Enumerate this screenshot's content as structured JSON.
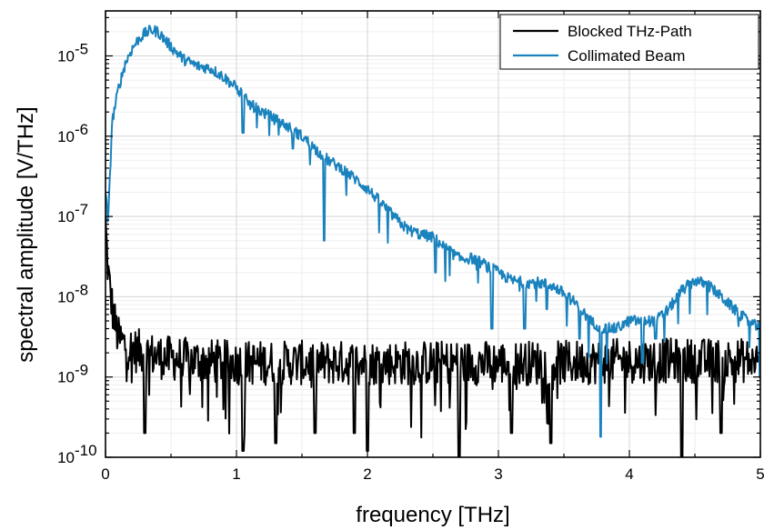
{
  "chart_data": {
    "type": "line",
    "xlabel": "frequency [THz]",
    "ylabel": "spectral amplitude [V/THz]",
    "xlim": [
      0,
      5
    ],
    "ylim": [
      1e-10,
      5e-05
    ],
    "yscale": "log",
    "grid": true,
    "legend_position": "top-right",
    "x_ticks": [
      "0",
      "1",
      "2",
      "3",
      "4",
      "5"
    ],
    "y_ticks": [
      {
        "base": "10",
        "exp": "-10",
        "value": 1e-10
      },
      {
        "base": "10",
        "exp": "-9",
        "value": 1e-09
      },
      {
        "base": "10",
        "exp": "-8",
        "value": 1e-08
      },
      {
        "base": "10",
        "exp": "-7",
        "value": 1e-07
      },
      {
        "base": "10",
        "exp": "-6",
        "value": 1e-06
      },
      {
        "base": "10",
        "exp": "-5",
        "value": 1e-05
      }
    ],
    "series": [
      {
        "name": "Blocked THz-Path",
        "color": "#000000",
        "noisy": true,
        "x": [
          0.0,
          0.02,
          0.04,
          0.06,
          0.08,
          0.1,
          0.15,
          0.2,
          0.3,
          0.4,
          0.5,
          0.7,
          1.0,
          1.5,
          2.0,
          2.5,
          3.0,
          3.5,
          4.0,
          4.5,
          5.0
        ],
        "y": [
          8e-08,
          2e-08,
          1e-08,
          6e-09,
          4e-09,
          3e-09,
          2.5e-09,
          2.2e-09,
          2e-09,
          1.8e-09,
          1.7e-09,
          1.6e-09,
          1.5e-09,
          1.5e-09,
          1.5e-09,
          1.5e-09,
          1.5e-09,
          1.5e-09,
          1.6e-09,
          1.6e-09,
          1.6e-09
        ],
        "dips": [
          [
            0.3,
            2e-10
          ],
          [
            1.05,
            1.2e-10
          ],
          [
            1.3,
            1.5e-10
          ],
          [
            1.6,
            2e-10
          ],
          [
            1.9,
            2e-10
          ],
          [
            2.0,
            1.2e-10
          ],
          [
            2.7,
            1e-10
          ],
          [
            3.1,
            2e-10
          ],
          [
            3.4,
            1.5e-10
          ],
          [
            4.4,
            1e-10
          ],
          [
            4.7,
            2e-10
          ]
        ]
      },
      {
        "name": "Collimated Beam",
        "color": "#1a82bd",
        "noisy": true,
        "x": [
          0.0,
          0.02,
          0.05,
          0.1,
          0.15,
          0.2,
          0.25,
          0.3,
          0.35,
          0.4,
          0.5,
          0.6,
          0.7,
          0.8,
          0.9,
          1.0,
          1.1,
          1.2,
          1.3,
          1.4,
          1.5,
          1.6,
          1.7,
          1.8,
          1.9,
          2.0,
          2.1,
          2.2,
          2.3,
          2.4,
          2.5,
          2.6,
          2.7,
          2.8,
          2.9,
          3.0,
          3.1,
          3.2,
          3.3,
          3.4,
          3.5,
          3.6,
          3.7,
          3.8,
          3.9,
          4.0,
          4.1,
          4.2,
          4.3,
          4.4,
          4.5,
          4.6,
          4.7,
          4.8,
          4.9,
          5.0
        ],
        "y": [
          2e-07,
          8e-08,
          1.5e-06,
          4e-06,
          8e-06,
          1.2e-05,
          1.6e-05,
          1.9e-05,
          2.1e-05,
          2e-05,
          1.3e-05,
          9e-06,
          7.5e-06,
          7e-06,
          5.5e-06,
          4e-06,
          2.5e-06,
          2e-06,
          1.6e-06,
          1.3e-06,
          1e-06,
          7e-07,
          5e-07,
          4e-07,
          3e-07,
          2.2e-07,
          1.5e-07,
          1e-07,
          7e-08,
          6e-08,
          5.5e-08,
          4e-08,
          3e-08,
          3e-08,
          2.5e-08,
          2e-08,
          1.6e-08,
          1.5e-08,
          1.5e-08,
          1.4e-08,
          1.1e-08,
          8e-09,
          5e-09,
          4e-09,
          4e-09,
          5e-09,
          5e-09,
          5e-09,
          7e-09,
          1.2e-08,
          1.6e-08,
          1.4e-08,
          1e-08,
          7e-09,
          5e-09,
          4e-09
        ],
        "dips": [
          [
            1.05,
            1.1e-06
          ],
          [
            1.43,
            7e-07
          ],
          [
            1.67,
            5e-08
          ],
          [
            2.52,
            2e-08
          ],
          [
            2.75,
            3e-08
          ],
          [
            2.95,
            4e-09
          ],
          [
            3.2,
            4e-09
          ],
          [
            3.37,
            7e-09
          ],
          [
            3.62,
            3e-09
          ],
          [
            3.78,
            1.8e-10
          ],
          [
            4.1,
            1.5e-09
          ],
          [
            4.2,
            3e-09
          ],
          [
            5.0,
            1e-09
          ]
        ]
      }
    ]
  }
}
